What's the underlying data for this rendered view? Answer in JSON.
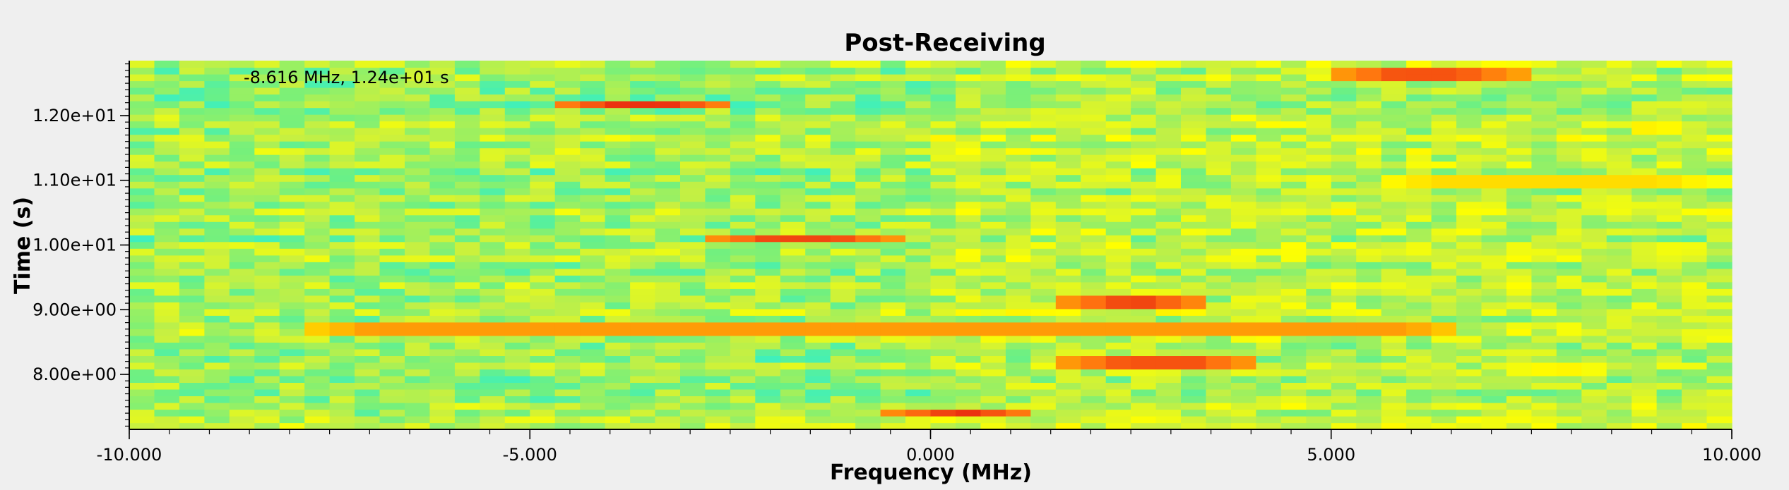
{
  "chart_data": {
    "type": "heatmap",
    "title": "Post-Receiving",
    "xlabel": "Frequency (MHz)",
    "ylabel": "Time (s)",
    "xlim": [
      -10.0,
      10.0
    ],
    "ylim": [
      7.15,
      12.85
    ],
    "x_ticks": [
      -10.0,
      -5.0,
      0.0,
      5.0,
      10.0
    ],
    "x_tick_labels": [
      "-10.000",
      "-5.000",
      "0.000",
      "5.000",
      "10.000"
    ],
    "y_ticks": [
      8.0,
      9.0,
      10.0,
      11.0,
      12.0
    ],
    "y_tick_labels": [
      "8.00e+00",
      "9.00e+00",
      "1.00e+01",
      "1.10e+01",
      "1.20e+01"
    ],
    "cursor_readout": "-8.616 MHz, 1.24e+01 s",
    "colormap": [
      "#00c8ff",
      "#20f0e0",
      "#70f080",
      "#c8f040",
      "#ffff00",
      "#ffc000",
      "#ff7010",
      "#e01010"
    ],
    "freq_bins": 64,
    "time_bins": 55,
    "background_level": [
      0.25,
      0.5
    ],
    "hot_segments": [
      {
        "t": 7.4,
        "f0": -0.5,
        "f1": 1.3,
        "level": 0.95
      },
      {
        "t": 8.2,
        "f0": 1.6,
        "f1": 4.1,
        "level": 0.9
      },
      {
        "t": 8.7,
        "f0": -7.8,
        "f1": 6.7,
        "level": 0.78
      },
      {
        "t": 9.1,
        "f0": 1.6,
        "f1": 3.5,
        "level": 0.92
      },
      {
        "t": 10.1,
        "f0": -2.8,
        "f1": -0.4,
        "level": 0.92
      },
      {
        "t": 11.0,
        "f0": 5.5,
        "f1": 9.9,
        "level": 0.65
      },
      {
        "t": 12.2,
        "f0": -4.7,
        "f1": -2.5,
        "level": 0.95
      },
      {
        "t": 12.65,
        "f0": 5.0,
        "f1": 7.4,
        "level": 0.9
      },
      {
        "t": 8.1,
        "f0": 7.2,
        "f1": 8.5,
        "level": 0.62
      },
      {
        "t": 11.8,
        "f0": 8.6,
        "f1": 9.4,
        "level": 0.66
      }
    ]
  }
}
